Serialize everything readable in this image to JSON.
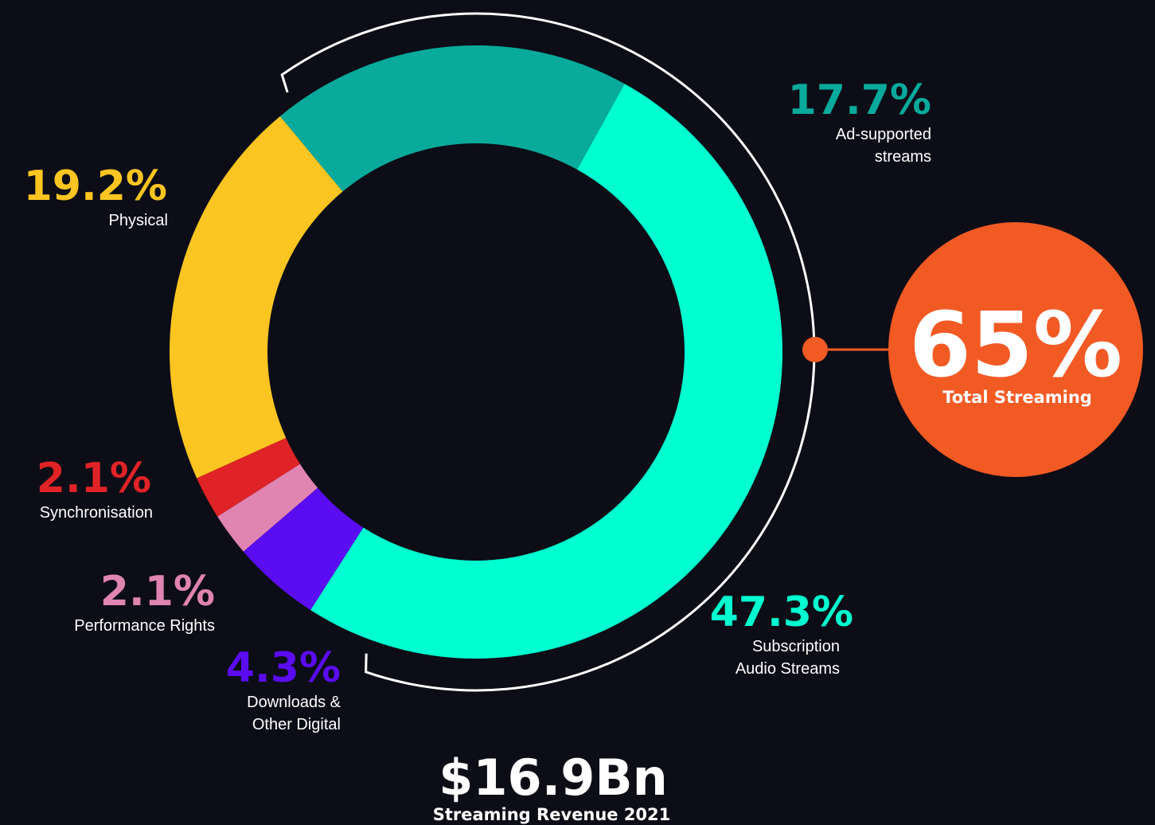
{
  "chart_data": {
    "type": "donut",
    "slices": [
      {
        "name": [
          "Subscription",
          "Audio Streams"
        ],
        "value": 47.3,
        "value_label": "47.3%",
        "color": "#00ffd0"
      },
      {
        "name": [
          "Downloads &",
          "Other Digital"
        ],
        "value": 4.3,
        "value_label": "4.3%",
        "color": "#5a0cf2"
      },
      {
        "name": [
          "Performance Rights"
        ],
        "value": 2.1,
        "value_label": "2.1%",
        "color": "#e084b2"
      },
      {
        "name": [
          "Synchronisation"
        ],
        "value": 2.1,
        "value_label": "2.1%",
        "color": "#e02326"
      },
      {
        "name": [
          "Physical"
        ],
        "value": 19.2,
        "value_label": "19.2%",
        "color": "#fdc521"
      },
      {
        "name": [
          "Ad-supported",
          "streams"
        ],
        "value": 17.7,
        "value_label": "17.7%",
        "color": "#08aa9c"
      }
    ],
    "callout": {
      "value": 65,
      "value_label": "65%",
      "label": "Total Streaming",
      "color": "#f25a24"
    },
    "total": {
      "value_label": "$16.9Bn",
      "label": "Streaming Revenue 2021"
    }
  }
}
